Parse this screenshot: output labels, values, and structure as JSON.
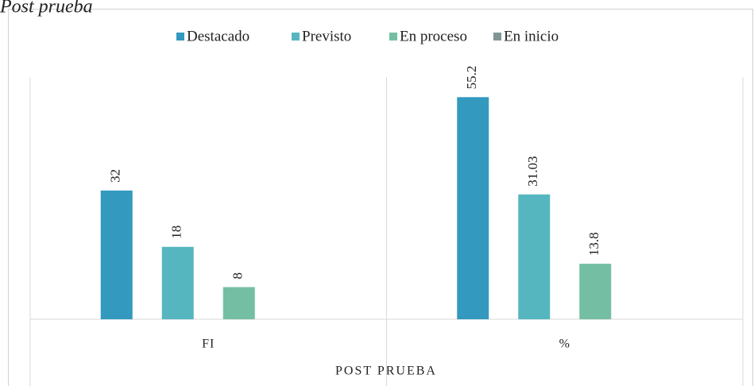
{
  "chart_data": {
    "type": "bar",
    "title": "Post prueba",
    "x_label": "POST PRUEBA",
    "categories": [
      "FI",
      "%"
    ],
    "series": [
      {
        "name": "Destacado",
        "color": "#3399bf",
        "values": [
          32,
          55.2
        ]
      },
      {
        "name": "Previsto",
        "color": "#56b6c0",
        "values": [
          18,
          31.03
        ]
      },
      {
        "name": "En proceso",
        "color": "#74bfa4",
        "values": [
          8,
          13.8
        ]
      },
      {
        "name": "En inicio",
        "color": "#7f9596",
        "values": [
          null,
          null
        ]
      }
    ],
    "ylim": [
      0,
      60
    ],
    "legend": "top"
  }
}
